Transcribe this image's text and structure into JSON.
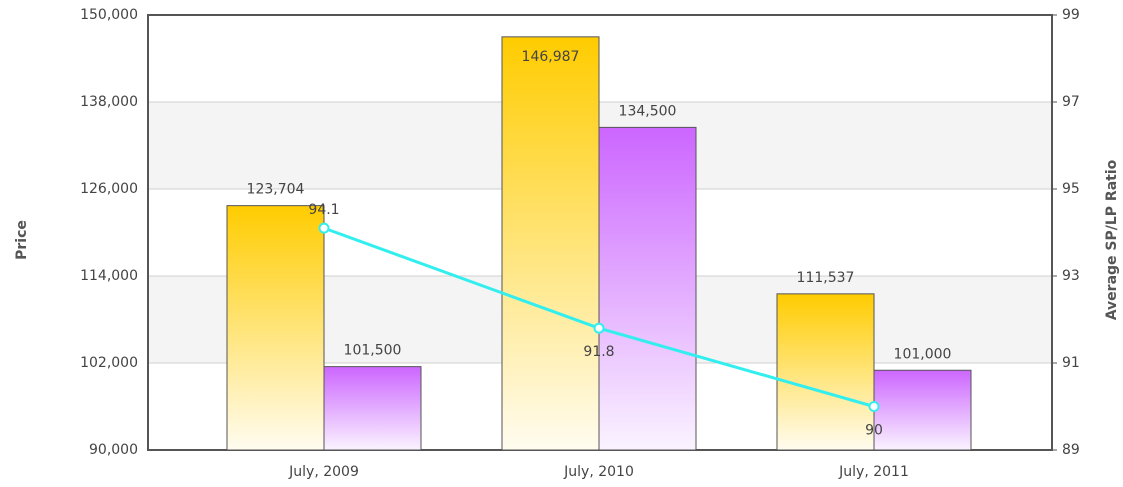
{
  "chart_data": {
    "type": "bar-line",
    "categories": [
      "July, 2009",
      "July, 2010",
      "July, 2011"
    ],
    "series": [
      {
        "color": "#FFCC00",
        "values": [
          123704,
          146987,
          111537
        ],
        "value_labels": [
          "123,704",
          "146,987",
          "111,537"
        ]
      },
      {
        "color": "#CC66FF",
        "values": [
          101500,
          134500,
          101000
        ],
        "value_labels": [
          "101,500",
          "134,500",
          "101,000"
        ]
      },
      {
        "color": "#33EEEE",
        "type": "line",
        "axis": "y2",
        "values": [
          94.1,
          91.8,
          90
        ]
      }
    ],
    "ylabel": "Price",
    "y2label": "Average SP/LP Ratio",
    "ylim": [
      90000,
      150000
    ],
    "yticks": [
      {
        "value": 90000,
        "label": "90,000"
      },
      {
        "value": 102000,
        "label": "102,000"
      },
      {
        "value": 114000,
        "label": "114,000"
      },
      {
        "value": 126000,
        "label": "126,000"
      },
      {
        "value": 138000,
        "label": "138,000"
      },
      {
        "value": 150000,
        "label": "150,000"
      }
    ],
    "y2lim": [
      89,
      99
    ],
    "y2ticks": [
      89,
      91,
      93,
      95,
      97,
      99
    ],
    "grid": true
  }
}
